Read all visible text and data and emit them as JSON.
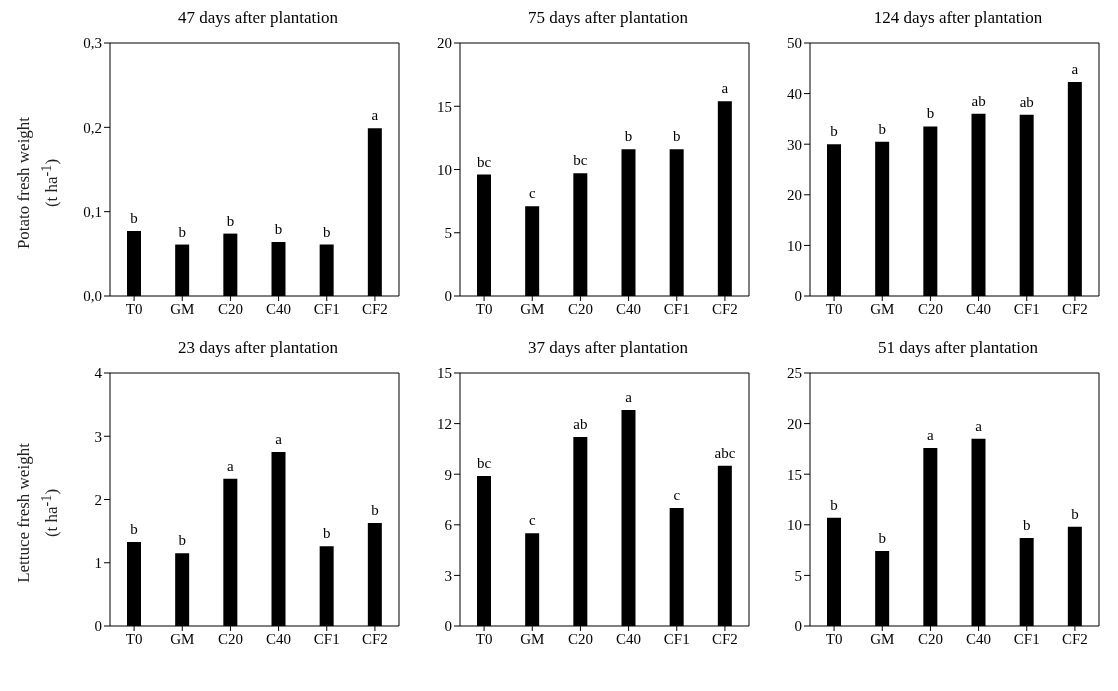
{
  "chart_data": [
    {
      "type": "bar",
      "title": "47  days after plantation",
      "ylabel": "Potato fresh weight\n(t ha$^{-1}$)",
      "categories": [
        "T0",
        "GM",
        "C20",
        "C40",
        "CF1",
        "CF2"
      ],
      "values": [
        0.077,
        0.061,
        0.074,
        0.064,
        0.061,
        0.199
      ],
      "color": "#000000",
      "ylim": [
        0,
        0.3
      ],
      "yticks": [
        {
          "value": 0,
          "label": "0,0"
        },
        {
          "value": 0.1,
          "label": "0,1"
        },
        {
          "value": 0.2,
          "label": "0,2"
        },
        {
          "value": 0.3,
          "label": "0,3"
        }
      ],
      "grid": false,
      "legend": false,
      "annotations": [
        {
          "text": "b",
          "x": "T0",
          "y": 0.077
        },
        {
          "text": "b",
          "x": "GM",
          "y": 0.061
        },
        {
          "text": "b",
          "x": "C20",
          "y": 0.074
        },
        {
          "text": "b",
          "x": "C40",
          "y": 0.064
        },
        {
          "text": "b",
          "x": "CF1",
          "y": 0.061
        },
        {
          "text": "a",
          "x": "CF2",
          "y": 0.199
        }
      ]
    },
    {
      "type": "bar",
      "title": "75  days after plantation",
      "categories": [
        "T0",
        "GM",
        "C20",
        "C40",
        "CF1",
        "CF2"
      ],
      "values": [
        9.6,
        7.1,
        9.7,
        11.6,
        11.6,
        15.4
      ],
      "color": "#000000",
      "ylim": [
        0,
        20
      ],
      "yticks": [
        0,
        5,
        10,
        15,
        20
      ],
      "grid": false,
      "legend": false,
      "annotations": [
        {
          "text": "bc",
          "x": "T0",
          "y": 9.6
        },
        {
          "text": "c",
          "x": "GM",
          "y": 7.1
        },
        {
          "text": "bc",
          "x": "C20",
          "y": 9.7
        },
        {
          "text": "b",
          "x": "C40",
          "y": 11.6
        },
        {
          "text": "b",
          "x": "CF1",
          "y": 11.6
        },
        {
          "text": "a",
          "x": "CF2",
          "y": 15.4
        }
      ]
    },
    {
      "type": "bar",
      "title": "124  days after plantation",
      "categories": [
        "T0",
        "GM",
        "C20",
        "C40",
        "CF1",
        "CF2"
      ],
      "values": [
        30,
        30.5,
        33.5,
        36,
        35.8,
        42.3
      ],
      "color": "#000000",
      "ylim": [
        0,
        50
      ],
      "yticks": [
        0,
        10,
        20,
        30,
        40,
        50
      ],
      "grid": false,
      "legend": false,
      "annotations": [
        {
          "text": "b",
          "x": "T0",
          "y": 30
        },
        {
          "text": "b",
          "x": "GM",
          "y": 30.5
        },
        {
          "text": "b",
          "x": "C20",
          "y": 33.5
        },
        {
          "text": "ab",
          "x": "C40",
          "y": 36
        },
        {
          "text": "ab",
          "x": "CF1",
          "y": 35.8
        },
        {
          "text": "a",
          "x": "CF2",
          "y": 42.3
        }
      ]
    },
    {
      "type": "bar",
      "title": "23  days after plantation",
      "ylabel": "Lettuce fresh weight\n(t ha$^{-1}$)",
      "categories": [
        "T0",
        "GM",
        "C20",
        "C40",
        "CF1",
        "CF2"
      ],
      "values": [
        1.33,
        1.15,
        2.33,
        2.75,
        1.26,
        1.63
      ],
      "color": "#000000",
      "ylim": [
        0,
        4
      ],
      "yticks": [
        0,
        1,
        2,
        3,
        4
      ],
      "grid": false,
      "legend": false,
      "annotations": [
        {
          "text": "b",
          "x": "T0",
          "y": 1.33
        },
        {
          "text": "b",
          "x": "GM",
          "y": 1.15
        },
        {
          "text": "a",
          "x": "C20",
          "y": 2.33
        },
        {
          "text": "a",
          "x": "C40",
          "y": 2.75
        },
        {
          "text": "b",
          "x": "CF1",
          "y": 1.26
        },
        {
          "text": "b",
          "x": "CF2",
          "y": 1.63
        }
      ]
    },
    {
      "type": "bar",
      "title": "37  days after plantation",
      "categories": [
        "T0",
        "GM",
        "C20",
        "C40",
        "CF1",
        "CF2"
      ],
      "values": [
        8.9,
        5.5,
        11.2,
        12.8,
        7.0,
        9.5
      ],
      "color": "#000000",
      "ylim": [
        0,
        15
      ],
      "yticks": [
        0,
        3,
        6,
        9,
        12,
        15
      ],
      "grid": false,
      "legend": false,
      "annotations": [
        {
          "text": "bc",
          "x": "T0",
          "y": 8.9
        },
        {
          "text": "c",
          "x": "GM",
          "y": 5.5
        },
        {
          "text": "ab",
          "x": "C20",
          "y": 11.2
        },
        {
          "text": "a",
          "x": "C40",
          "y": 12.8
        },
        {
          "text": "c",
          "x": "CF1",
          "y": 7.0
        },
        {
          "text": "abc",
          "x": "CF2",
          "y": 9.5
        }
      ]
    },
    {
      "type": "bar",
      "title": "51  days after plantation",
      "categories": [
        "T0",
        "GM",
        "C20",
        "C40",
        "CF1",
        "CF2"
      ],
      "values": [
        10.7,
        7.4,
        17.6,
        18.5,
        8.7,
        9.8
      ],
      "color": "#000000",
      "ylim": [
        0,
        25
      ],
      "yticks": [
        0,
        5,
        10,
        15,
        20,
        25
      ],
      "grid": false,
      "legend": false,
      "annotations": [
        {
          "text": "b",
          "x": "T0",
          "y": 10.7
        },
        {
          "text": "b",
          "x": "GM",
          "y": 7.4
        },
        {
          "text": "a",
          "x": "C20",
          "y": 17.6
        },
        {
          "text": "a",
          "x": "C40",
          "y": 18.5
        },
        {
          "text": "b",
          "x": "CF1",
          "y": 8.7
        },
        {
          "text": "b",
          "x": "CF2",
          "y": 9.8
        }
      ]
    }
  ]
}
